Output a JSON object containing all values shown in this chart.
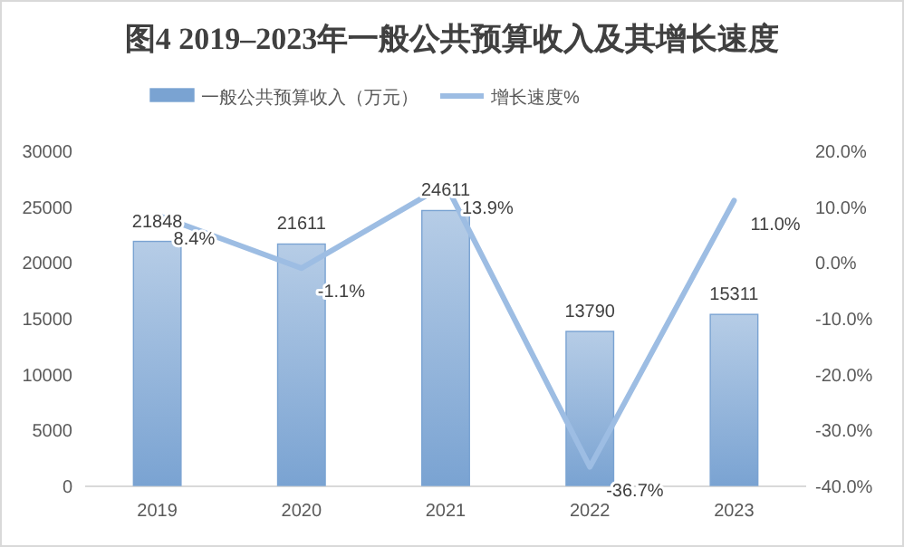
{
  "chart_data": {
    "type": "bar",
    "title": "图4   2019–2023年一般公共预算收入及其增长速度",
    "categories": [
      "2019",
      "2020",
      "2021",
      "2022",
      "2023"
    ],
    "series": [
      {
        "name": "一般公共预算收入（万元）",
        "color": "#7aa3d2",
        "values": [
          21848,
          21611,
          24611,
          13790,
          15311
        ]
      },
      {
        "name": "增长速度%",
        "type": "line",
        "axis": "y2",
        "color": "#9dbde3",
        "values": [
          8.4,
          -1.1,
          13.9,
          -36.7,
          11.0
        ],
        "value_labels": [
          "8.4%",
          "-1.1%",
          "13.9%",
          "-36.7%",
          "11.0%"
        ]
      }
    ],
    "data_labels": true,
    "ylim": [
      0,
      30000
    ],
    "yticks": [
      0,
      5000,
      10000,
      15000,
      20000,
      25000,
      30000
    ],
    "y2lim": [
      -40,
      20
    ],
    "y2ticks": [
      {
        "value": -40,
        "label": "-40.0%"
      },
      {
        "value": -30,
        "label": "-30.0%"
      },
      {
        "value": -20,
        "label": "-20.0%"
      },
      {
        "value": -10,
        "label": "-10.0%"
      },
      {
        "value": 0,
        "label": "0.0%"
      },
      {
        "value": 10,
        "label": "10.0%"
      },
      {
        "value": 20,
        "label": "20.0%"
      }
    ],
    "legend": "top",
    "grid": false
  }
}
